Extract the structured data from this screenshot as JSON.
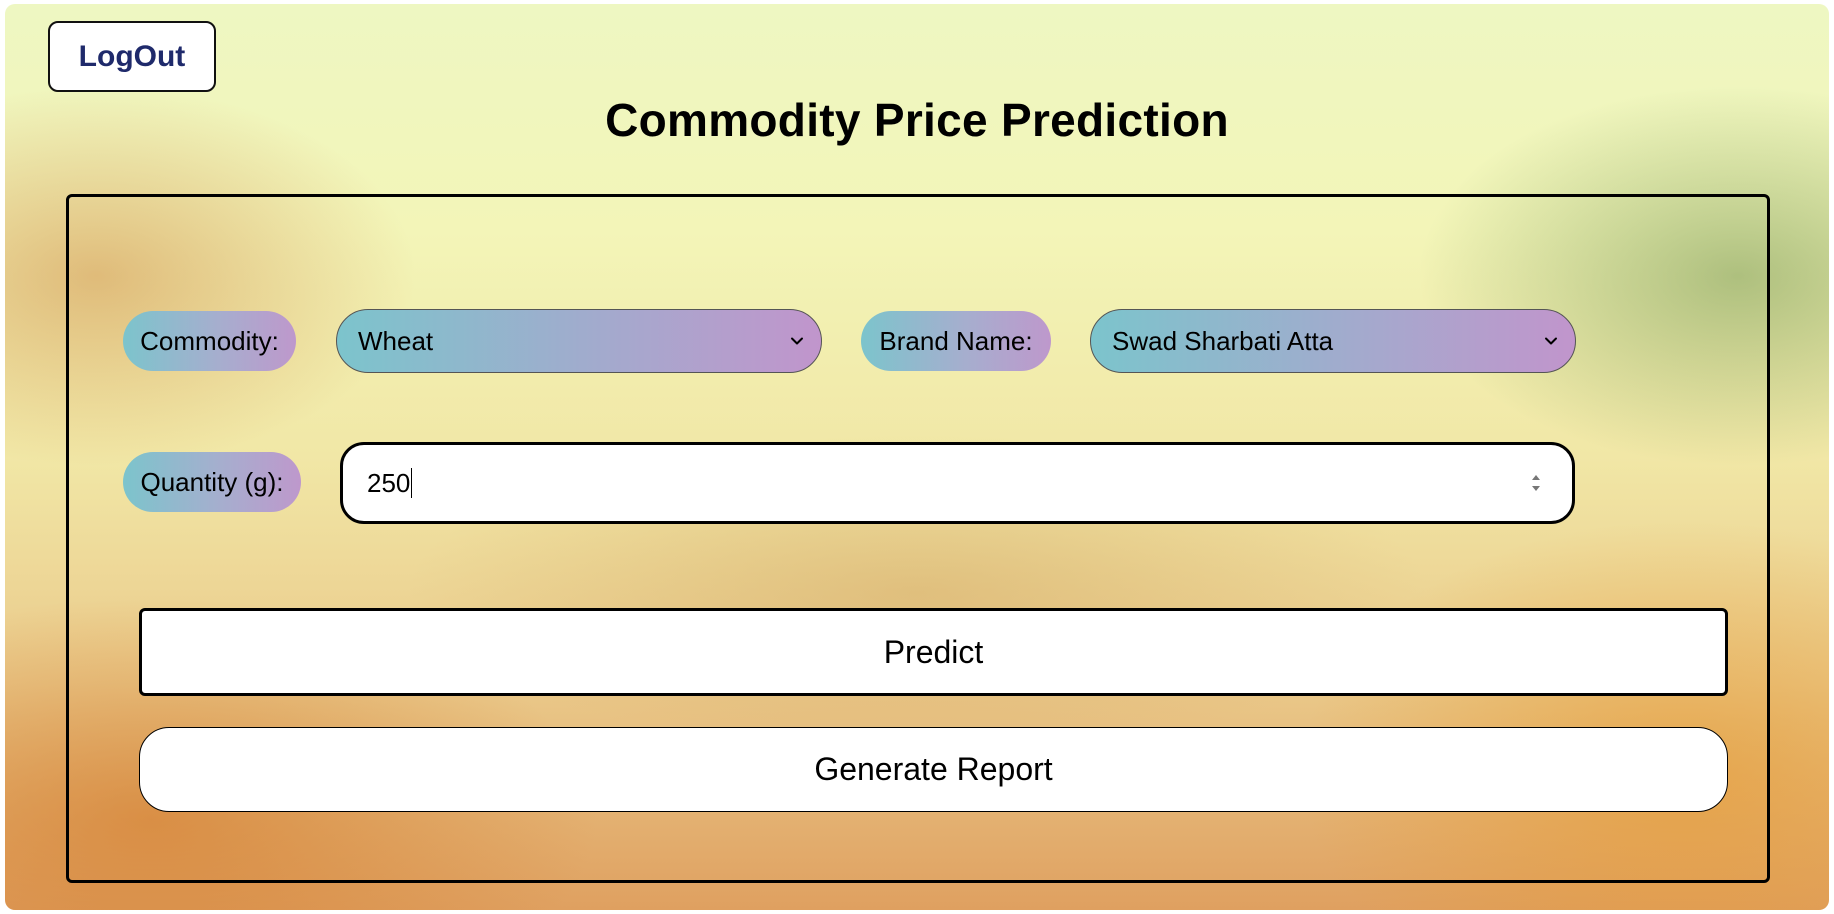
{
  "header": {
    "logout_label": "LogOut",
    "title": "Commodity Price Prediction"
  },
  "form": {
    "commodity": {
      "label": "Commodity:",
      "selected": "Wheat",
      "icon": "chevron-down-icon"
    },
    "brand": {
      "label": "Brand Name:",
      "selected": "Swad Sharbati Atta",
      "icon": "chevron-down-icon"
    },
    "quantity": {
      "label": "Quantity (g):",
      "value": "250",
      "icon": "number-stepper-icon"
    }
  },
  "actions": {
    "predict_label": "Predict",
    "report_label": "Generate Report"
  },
  "colors": {
    "pill_gradient_start": "#7cc4cc",
    "pill_gradient_end": "#be98cc",
    "logout_text": "#1f2a6b"
  }
}
